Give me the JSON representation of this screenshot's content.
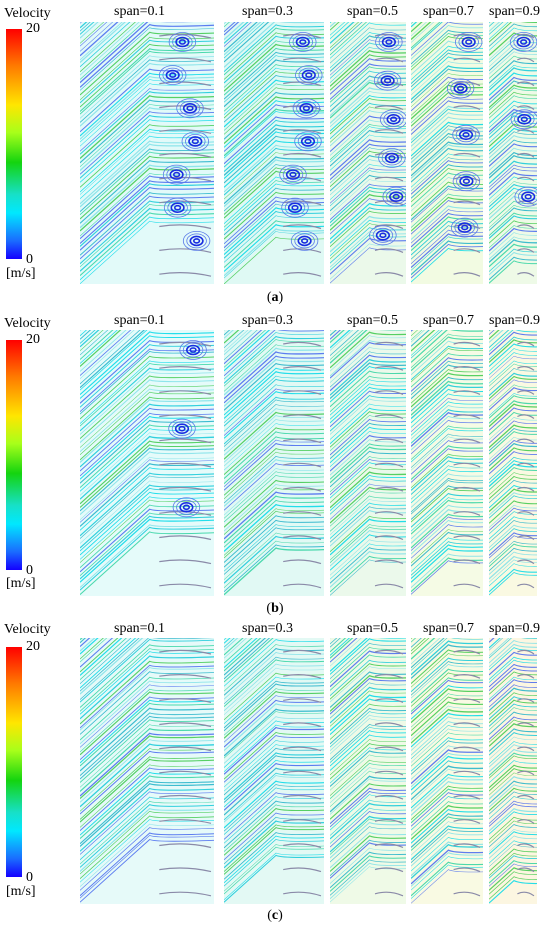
{
  "legend": {
    "title": "Velocity",
    "max": "20",
    "min": "0",
    "unit": "[m/s]"
  },
  "colorbar_colors": [
    "#ff0000",
    "#ffe600",
    "#14d40f",
    "#00e8ff",
    "#1400ff"
  ],
  "panels": [
    {
      "id": "a",
      "caption_open": "(",
      "caption_letter": "a",
      "caption_close": ")",
      "spans": [
        "span=0.1",
        "span=0.3",
        "span=0.5",
        "span=0.7",
        "span=0.9"
      ]
    },
    {
      "id": "b",
      "caption_open": "(",
      "caption_letter": "b",
      "caption_close": ")",
      "spans": [
        "span=0.1",
        "span=0.3",
        "span=0.5",
        "span=0.7",
        "span=0.9"
      ]
    },
    {
      "id": "c",
      "caption_open": "(",
      "caption_letter": "c",
      "caption_close": ")",
      "spans": [
        "span=0.1",
        "span=0.3",
        "span=0.5",
        "span=0.7",
        "span=0.9"
      ]
    }
  ]
}
